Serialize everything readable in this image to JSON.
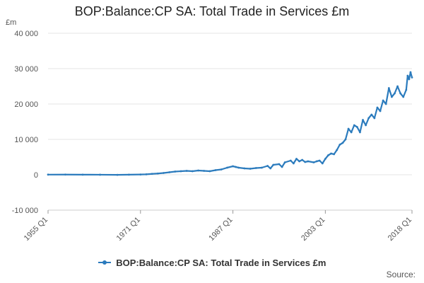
{
  "chart_data": {
    "type": "line",
    "title": "BOP:Balance:CP SA: Total Trade in Services £m",
    "ylabel": "£m",
    "xlabel": "",
    "ylim": [
      -10000,
      40000
    ],
    "yticks": [
      {
        "value": 40000,
        "label": "40 000"
      },
      {
        "value": 30000,
        "label": "30 000"
      },
      {
        "value": 20000,
        "label": "20 000"
      },
      {
        "value": 10000,
        "label": "10 000"
      },
      {
        "value": 0,
        "label": "0"
      },
      {
        "value": -10000,
        "label": "-10 000"
      }
    ],
    "xrange": [
      1955.0,
      2018.0
    ],
    "xticks": [
      {
        "value": 1955.0,
        "label": "1955 Q1"
      },
      {
        "value": 1971.0,
        "label": "1971 Q1"
      },
      {
        "value": 1987.0,
        "label": "1987 Q1"
      },
      {
        "value": 2003.0,
        "label": "2003 Q1"
      },
      {
        "value": 2018.0,
        "label": "2018 Q1"
      }
    ],
    "grid": true,
    "legend_position": "bottom",
    "series": [
      {
        "name": "BOP:Balance:CP SA: Total Trade in Services £m",
        "color": "#2b7bbd",
        "points": [
          [
            1955.0,
            40
          ],
          [
            1958.0,
            50
          ],
          [
            1961.0,
            30
          ],
          [
            1964.0,
            10
          ],
          [
            1967.0,
            -20
          ],
          [
            1969.0,
            30
          ],
          [
            1971.0,
            80
          ],
          [
            1972.0,
            120
          ],
          [
            1973.0,
            250
          ],
          [
            1974.0,
            350
          ],
          [
            1975.0,
            500
          ],
          [
            1976.0,
            700
          ],
          [
            1977.0,
            900
          ],
          [
            1978.0,
            1000
          ],
          [
            1979.0,
            1100
          ],
          [
            1980.0,
            1000
          ],
          [
            1981.0,
            1200
          ],
          [
            1982.0,
            1100
          ],
          [
            1983.0,
            1000
          ],
          [
            1984.0,
            1300
          ],
          [
            1985.0,
            1500
          ],
          [
            1986.0,
            2000
          ],
          [
            1987.0,
            2400
          ],
          [
            1987.5,
            2200
          ],
          [
            1988.0,
            2000
          ],
          [
            1989.0,
            1800
          ],
          [
            1990.0,
            1700
          ],
          [
            1991.0,
            1900
          ],
          [
            1992.0,
            2000
          ],
          [
            1993.0,
            2500
          ],
          [
            1993.5,
            1800
          ],
          [
            1994.0,
            2800
          ],
          [
            1995.0,
            3000
          ],
          [
            1995.5,
            2200
          ],
          [
            1996.0,
            3500
          ],
          [
            1997.0,
            4000
          ],
          [
            1997.5,
            3200
          ],
          [
            1998.0,
            4500
          ],
          [
            1998.5,
            3800
          ],
          [
            1999.0,
            4200
          ],
          [
            1999.5,
            3600
          ],
          [
            2000.0,
            3800
          ],
          [
            2001.0,
            3500
          ],
          [
            2001.5,
            3800
          ],
          [
            2002.0,
            4000
          ],
          [
            2002.5,
            3200
          ],
          [
            2003.0,
            4500
          ],
          [
            2003.5,
            5500
          ],
          [
            2004.0,
            6000
          ],
          [
            2004.5,
            5800
          ],
          [
            2005.0,
            7000
          ],
          [
            2005.5,
            8500
          ],
          [
            2006.0,
            9000
          ],
          [
            2006.5,
            10000
          ],
          [
            2007.0,
            13000
          ],
          [
            2007.5,
            12000
          ],
          [
            2008.0,
            14000
          ],
          [
            2008.5,
            13500
          ],
          [
            2009.0,
            12000
          ],
          [
            2009.5,
            15500
          ],
          [
            2010.0,
            14000
          ],
          [
            2010.5,
            16000
          ],
          [
            2011.0,
            17000
          ],
          [
            2011.5,
            16000
          ],
          [
            2012.0,
            19000
          ],
          [
            2012.5,
            18000
          ],
          [
            2013.0,
            21000
          ],
          [
            2013.5,
            20000
          ],
          [
            2014.0,
            24500
          ],
          [
            2014.5,
            22000
          ],
          [
            2015.0,
            23000
          ],
          [
            2015.5,
            25000
          ],
          [
            2016.0,
            23000
          ],
          [
            2016.5,
            22000
          ],
          [
            2017.0,
            24000
          ],
          [
            2017.25,
            28000
          ],
          [
            2017.5,
            27000
          ],
          [
            2017.75,
            29000
          ],
          [
            2018.0,
            27500
          ]
        ]
      }
    ],
    "legend_label": "BOP:Balance:CP SA: Total Trade in Services £m",
    "source_label": "Source:"
  }
}
